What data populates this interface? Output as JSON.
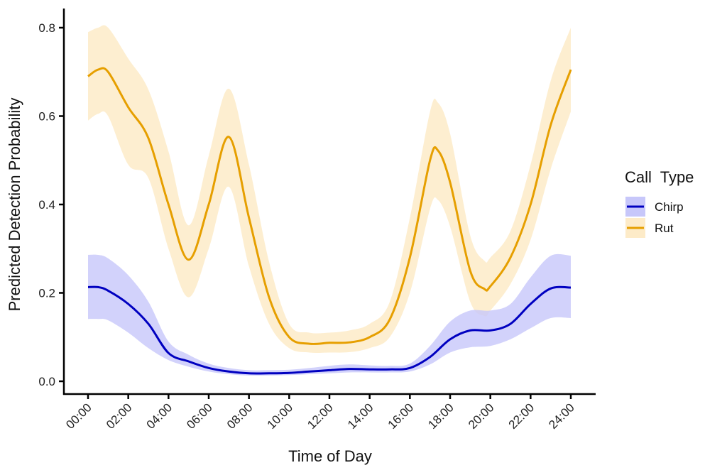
{
  "chart_data": {
    "type": "line",
    "title": "",
    "xlabel": "Time of Day",
    "ylabel": "Predicted Detection Probability",
    "xlim": [
      0,
      24
    ],
    "ylim": [
      0,
      0.8
    ],
    "x_ticks": [
      "00:00",
      "02:00",
      "04:00",
      "06:00",
      "08:00",
      "10:00",
      "12:00",
      "14:00",
      "16:00",
      "18:00",
      "20:00",
      "22:00",
      "24:00"
    ],
    "y_ticks": [
      "0.0",
      "0.2",
      "0.4",
      "0.6",
      "0.8"
    ],
    "grid": false,
    "legend": {
      "title": "Call  Type",
      "position": "right"
    },
    "series": [
      {
        "name": "Rut",
        "color": "#E69F00",
        "band_color": "#FDEBC8",
        "x": [
          0,
          0.5,
          1,
          2,
          3,
          4,
          5,
          6,
          7,
          8,
          9,
          10,
          11,
          12,
          13,
          14,
          15,
          16,
          17,
          17.4,
          18,
          19,
          19.7,
          20,
          21,
          22,
          23,
          24
        ],
        "y": [
          0.69,
          0.705,
          0.7,
          0.62,
          0.55,
          0.4,
          0.275,
          0.4,
          0.553,
          0.37,
          0.19,
          0.1,
          0.085,
          0.087,
          0.088,
          0.1,
          0.14,
          0.28,
          0.5,
          0.522,
          0.45,
          0.25,
          0.209,
          0.215,
          0.28,
          0.4,
          0.58,
          0.705
        ],
        "lower": [
          0.59,
          0.605,
          0.6,
          0.49,
          0.46,
          0.3,
          0.19,
          0.3,
          0.44,
          0.26,
          0.13,
          0.075,
          0.065,
          0.065,
          0.066,
          0.075,
          0.1,
          0.2,
          0.39,
          0.41,
          0.35,
          0.18,
          0.148,
          0.16,
          0.22,
          0.32,
          0.48,
          0.61
        ],
        "upper": [
          0.79,
          0.8,
          0.8,
          0.73,
          0.66,
          0.52,
          0.353,
          0.51,
          0.662,
          0.49,
          0.27,
          0.13,
          0.11,
          0.11,
          0.115,
          0.13,
          0.18,
          0.37,
          0.61,
          0.63,
          0.56,
          0.33,
          0.273,
          0.28,
          0.34,
          0.49,
          0.68,
          0.8
        ]
      },
      {
        "name": "Chirp",
        "color": "#0000C0",
        "band_color": "#C7C7FA",
        "x": [
          0,
          0.5,
          1,
          2,
          3,
          4,
          5,
          6,
          7,
          8,
          9,
          10,
          11,
          12,
          13,
          14,
          15,
          16,
          17,
          18,
          19,
          20,
          21,
          22,
          23,
          24
        ],
        "y": [
          0.213,
          0.213,
          0.205,
          0.175,
          0.13,
          0.064,
          0.045,
          0.03,
          0.022,
          0.018,
          0.018,
          0.019,
          0.022,
          0.025,
          0.028,
          0.027,
          0.027,
          0.03,
          0.055,
          0.095,
          0.115,
          0.115,
          0.13,
          0.175,
          0.21,
          0.212
        ],
        "lower": [
          0.141,
          0.141,
          0.138,
          0.11,
          0.075,
          0.048,
          0.033,
          0.022,
          0.016,
          0.013,
          0.013,
          0.014,
          0.016,
          0.018,
          0.02,
          0.02,
          0.02,
          0.022,
          0.038,
          0.065,
          0.077,
          0.08,
          0.095,
          0.12,
          0.143,
          0.143
        ],
        "upper": [
          0.286,
          0.286,
          0.278,
          0.24,
          0.18,
          0.09,
          0.06,
          0.04,
          0.03,
          0.025,
          0.025,
          0.026,
          0.03,
          0.035,
          0.038,
          0.036,
          0.035,
          0.04,
          0.08,
          0.135,
          0.16,
          0.16,
          0.175,
          0.235,
          0.284,
          0.284
        ]
      }
    ],
    "legend_entries": [
      "Chirp",
      "Rut"
    ]
  }
}
